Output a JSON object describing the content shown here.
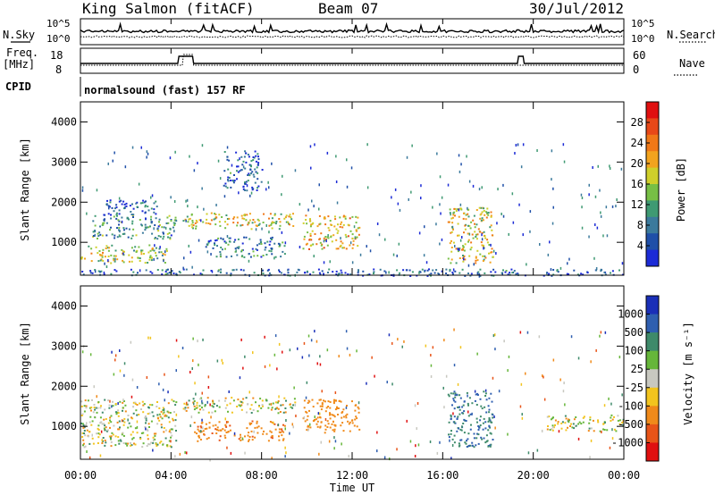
{
  "header": {
    "station": "King Salmon (fitACF)",
    "beam": "Beam 07",
    "date": "30/Jul/2012"
  },
  "noise_panel": {
    "left_label": "N.Sky",
    "right_label": "N.Search",
    "left_ticks": [
      "10^5",
      "10^0"
    ],
    "right_ticks": [
      "10^5",
      "10^0"
    ]
  },
  "freq_panel": {
    "left_label_1": "Freq.",
    "left_label_2": "[MHz]",
    "right_label": "Nave",
    "left_ticks": [
      "18",
      "8"
    ],
    "right_ticks": [
      "60",
      "0"
    ]
  },
  "cpid": {
    "label": "CPID",
    "text": "normalsound (fast) 157 RF"
  },
  "power_panel": {
    "ylabel": "Slant Range [km]",
    "yticks": [
      "4000",
      "3000",
      "2000",
      "1000"
    ],
    "colorbar_label": "Power [dB]",
    "colorbar_ticks": [
      "28",
      "24",
      "20",
      "16",
      "12",
      "8",
      "4"
    ],
    "colors": [
      "#1c2bd6",
      "#1f4fa8",
      "#3b7a9c",
      "#3f9a73",
      "#77bf45",
      "#cfcf2a",
      "#f2a31e",
      "#f07818",
      "#e84818",
      "#e01010"
    ]
  },
  "velocity_panel": {
    "ylabel": "Slant Range [km]",
    "yticks": [
      "4000",
      "3000",
      "2000",
      "1000"
    ],
    "colorbar_label": "Velocity [m s⁻¹]",
    "colorbar_ticks": [
      "1000",
      "500",
      "100",
      "25",
      "-25",
      "-100",
      "-500",
      "-1000"
    ],
    "colors": [
      "#1a2fb8",
      "#2f5fb0",
      "#3e8a6a",
      "#66b63a",
      "#c8c8c0",
      "#f2c41e",
      "#f08a1a",
      "#e85418",
      "#e01010"
    ]
  },
  "xaxis": {
    "label": "Time UT",
    "ticks": [
      "00:00",
      "04:00",
      "08:00",
      "12:00",
      "16:00",
      "20:00",
      "00:00"
    ]
  },
  "chart_data": {
    "type": "heatmap",
    "title": "King Salmon (fitACF)",
    "x_range_hours": [
      0,
      24
    ],
    "y_range_km": [
      180,
      4500
    ],
    "power_range_db": [
      0,
      32
    ],
    "velocity_levels_mps": [
      1000,
      500,
      100,
      25,
      -25,
      -100,
      -500,
      -1000
    ],
    "power_echo_regions": [
      {
        "t": [
          0.0,
          3.8
        ],
        "r": [
          500,
          950
        ],
        "db": 16
      },
      {
        "t": [
          0.5,
          4.2
        ],
        "r": [
          1100,
          1700
        ],
        "db": 10
      },
      {
        "t": [
          1.0,
          3.5
        ],
        "r": [
          1700,
          2100
        ],
        "db": 6
      },
      {
        "t": [
          4.5,
          9.5
        ],
        "r": [
          1350,
          1750
        ],
        "db": 18
      },
      {
        "t": [
          5.5,
          9.0
        ],
        "r": [
          650,
          1150
        ],
        "db": 8
      },
      {
        "t": [
          9.8,
          12.3
        ],
        "r": [
          850,
          1700
        ],
        "db": 20
      },
      {
        "t": [
          6.3,
          8.0
        ],
        "r": [
          2300,
          3300
        ],
        "db": 6
      },
      {
        "t": [
          16.2,
          18.2
        ],
        "r": [
          500,
          1900
        ],
        "db": 18
      },
      {
        "t": [
          0.0,
          24.0
        ],
        "r": [
          180,
          350
        ],
        "db": 6
      }
    ],
    "velocity_echo_regions": [
      {
        "t": [
          0.0,
          4.2
        ],
        "r": [
          500,
          1700
        ],
        "v": 0
      },
      {
        "t": [
          4.5,
          9.5
        ],
        "r": [
          1350,
          1750
        ],
        "v": 0
      },
      {
        "t": [
          5.0,
          9.0
        ],
        "r": [
          650,
          1150
        ],
        "v": -400
      },
      {
        "t": [
          9.8,
          12.3
        ],
        "r": [
          850,
          1700
        ],
        "v": -300
      },
      {
        "t": [
          16.2,
          18.2
        ],
        "r": [
          500,
          1900
        ],
        "v": 500
      },
      {
        "t": [
          20.5,
          24.0
        ],
        "r": [
          900,
          1300
        ],
        "v": 0
      }
    ]
  }
}
